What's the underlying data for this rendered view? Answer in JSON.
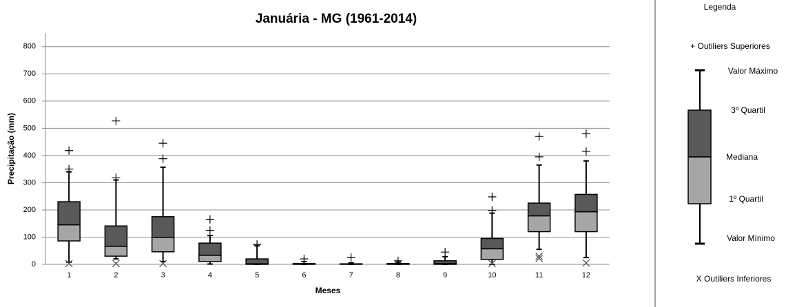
{
  "chart_data": {
    "type": "box",
    "title": "Januária - MG (1961-2014)",
    "x_label": "Meses",
    "y_label": "Precipitação (mm)",
    "categories": [
      "1",
      "2",
      "3",
      "4",
      "5",
      "6",
      "7",
      "8",
      "9",
      "10",
      "11",
      "12"
    ],
    "boxes": [
      {
        "min": 8,
        "q1": 86,
        "median": 145,
        "q3": 230,
        "max": 340,
        "outliers_upper": [
          418,
          350
        ],
        "outliers_lower": [
          3
        ]
      },
      {
        "min": 20,
        "q1": 30,
        "median": 66,
        "q3": 141,
        "max": 310,
        "outliers_upper": [
          527,
          318
        ],
        "outliers_lower": [
          3
        ]
      },
      {
        "min": 10,
        "q1": 46,
        "median": 99,
        "q3": 175,
        "max": 357,
        "outliers_upper": [
          445,
          388
        ],
        "outliers_lower": [
          3
        ]
      },
      {
        "min": 1,
        "q1": 10,
        "median": 33,
        "q3": 78,
        "max": 106,
        "outliers_upper": [
          165,
          125
        ],
        "outliers_lower": []
      },
      {
        "min": 0,
        "q1": 0,
        "median": 2,
        "q3": 20,
        "max": 68,
        "outliers_upper": [
          73
        ],
        "outliers_lower": []
      },
      {
        "min": 0,
        "q1": 0,
        "median": 0,
        "q3": 3,
        "max": 10,
        "outliers_upper": [
          20
        ],
        "outliers_lower": []
      },
      {
        "min": 0,
        "q1": 0,
        "median": 0,
        "q3": 2,
        "max": 5,
        "outliers_upper": [
          25
        ],
        "outliers_lower": []
      },
      {
        "min": 0,
        "q1": 0,
        "median": 0,
        "q3": 3,
        "max": 8,
        "outliers_upper": [
          13
        ],
        "outliers_lower": []
      },
      {
        "min": 0,
        "q1": 0,
        "median": 3,
        "q3": 13,
        "max": 28,
        "outliers_upper": [
          45
        ],
        "outliers_lower": []
      },
      {
        "min": 0,
        "q1": 18,
        "median": 57,
        "q3": 95,
        "max": 188,
        "outliers_upper": [
          248,
          198
        ],
        "outliers_lower": [
          3
        ]
      },
      {
        "min": 55,
        "q1": 120,
        "median": 178,
        "q3": 225,
        "max": 365,
        "outliers_upper": [
          470,
          395
        ],
        "outliers_lower": [
          30,
          22
        ]
      },
      {
        "min": 25,
        "q1": 120,
        "median": 193,
        "q3": 257,
        "max": 380,
        "outliers_upper": [
          480,
          415
        ],
        "outliers_lower": [
          5
        ]
      }
    ],
    "upper_box_color": "#595959",
    "lower_box_color": "#a6a6a6",
    "ylim": [
      0,
      850
    ],
    "yticks": [
      0,
      100,
      200,
      300,
      400,
      500,
      600,
      700,
      800
    ],
    "grid": true
  },
  "legend": {
    "title": "Legenda",
    "outliers_upper": "+ Outiliers Superiores",
    "max": "Valor Máximo",
    "q3": "3º Quartil",
    "median": "Mediana",
    "q1": "1º Quartil",
    "min": "Valor Mínimo",
    "outliers_lower": "X Outiliers Inferiores"
  }
}
